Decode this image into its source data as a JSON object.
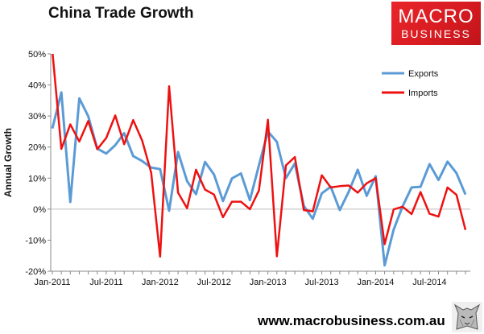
{
  "header": {
    "title": "China Trade Growth"
  },
  "logo": {
    "line1": "MACRO",
    "line2": "BUSINESS"
  },
  "footer": {
    "url": "www.macrobusiness.com.au"
  },
  "icons": {
    "logo_corner": "wolf-icon"
  },
  "chart_data": {
    "type": "line",
    "title": "China Trade Growth",
    "xlabel": "",
    "ylabel": "Annual Growth",
    "ylim": [
      -20,
      50
    ],
    "yticks": [
      "-20%",
      "-10%",
      "0%",
      "10%",
      "20%",
      "30%",
      "40%",
      "50%"
    ],
    "xtick_labels": [
      "Jan-2011",
      "Jul-2011",
      "Jan-2012",
      "Jul-2012",
      "Jan-2013",
      "Jul-2013",
      "Jan-2014",
      "Jul-2014"
    ],
    "grid": false,
    "legend": "top-right",
    "x": [
      "2011-01",
      "2011-02",
      "2011-03",
      "2011-04",
      "2011-05",
      "2011-06",
      "2011-07",
      "2011-08",
      "2011-09",
      "2011-10",
      "2011-11",
      "2011-12",
      "2012-01",
      "2012-02",
      "2012-03",
      "2012-04",
      "2012-05",
      "2012-06",
      "2012-07",
      "2012-08",
      "2012-09",
      "2012-10",
      "2012-11",
      "2012-12",
      "2013-01",
      "2013-02",
      "2013-03",
      "2013-04",
      "2013-05",
      "2013-06",
      "2013-07",
      "2013-08",
      "2013-09",
      "2013-10",
      "2013-11",
      "2013-12",
      "2014-01",
      "2014-02",
      "2014-03",
      "2014-04",
      "2014-05",
      "2014-06",
      "2014-07",
      "2014-08",
      "2014-09",
      "2014-10",
      "2014-11"
    ],
    "series": [
      {
        "name": "Exports",
        "color": "#5b9bd5",
        "values": [
          26.0,
          37.6,
          2.3,
          35.7,
          29.9,
          19.5,
          17.9,
          20.6,
          24.5,
          17.1,
          15.5,
          13.4,
          12.9,
          -0.5,
          18.4,
          9.0,
          4.8,
          15.2,
          11.2,
          2.6,
          9.9,
          11.5,
          2.9,
          14.1,
          25.0,
          21.7,
          10.0,
          14.7,
          1.0,
          -3.1,
          5.1,
          7.2,
          -0.3,
          5.6,
          12.7,
          4.3,
          10.6,
          -18.1,
          -6.6,
          0.9,
          7.0,
          7.2,
          14.5,
          9.4,
          15.3,
          11.6,
          4.7
        ]
      },
      {
        "name": "Imports",
        "color": "#ee1111",
        "values": [
          51.0,
          19.4,
          27.3,
          21.8,
          28.4,
          19.3,
          22.9,
          30.2,
          20.9,
          28.7,
          22.1,
          11.8,
          -15.3,
          39.6,
          5.3,
          0.3,
          12.7,
          6.3,
          4.7,
          -2.6,
          2.4,
          2.4,
          0.0,
          6.0,
          28.8,
          -15.2,
          14.1,
          16.8,
          -0.3,
          -0.7,
          10.9,
          7.0,
          7.4,
          7.6,
          5.3,
          8.3,
          10.0,
          -11.3,
          -0.1,
          0.8,
          -1.6,
          5.5,
          -1.5,
          -2.4,
          7.0,
          4.6,
          -6.7
        ]
      }
    ]
  }
}
